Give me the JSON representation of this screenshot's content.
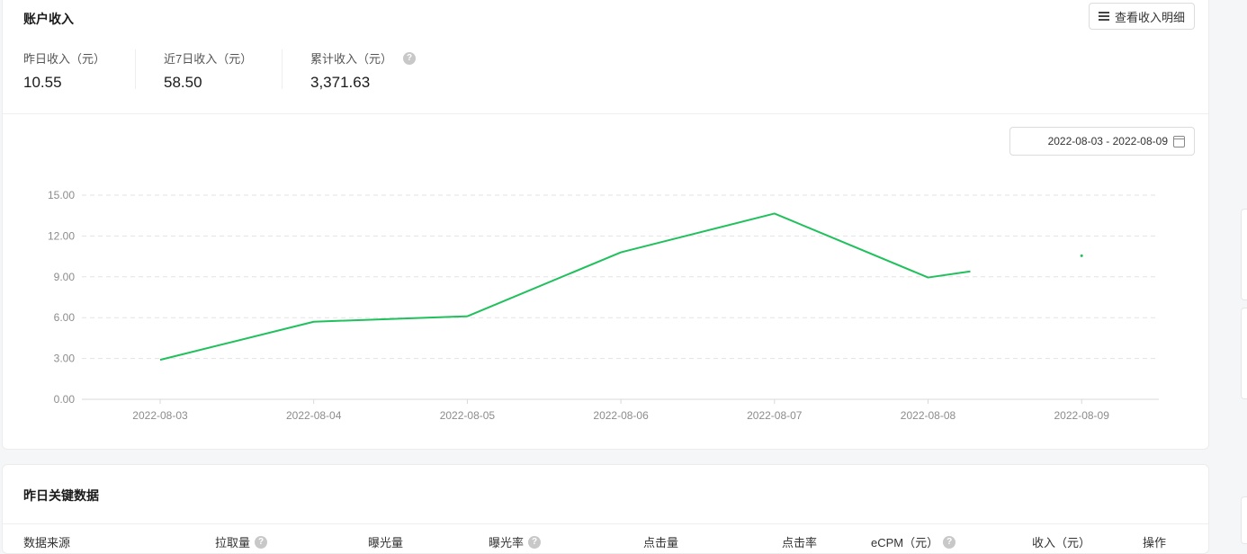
{
  "income": {
    "title": "账户收入",
    "detail_button": "查看收入明细",
    "stats": [
      {
        "label": "昨日收入（元）",
        "value": "10.55"
      },
      {
        "label": "近7日收入（元）",
        "value": "58.50"
      },
      {
        "label": "累计收入（元）",
        "value": "3,371.63",
        "help": "?"
      }
    ],
    "date_range": "2022-08-03 - 2022-08-09"
  },
  "chart_data": {
    "type": "line",
    "categories": [
      "2022-08-03",
      "2022-08-04",
      "2022-08-05",
      "2022-08-06",
      "2022-08-07",
      "2022-08-08",
      "2022-08-09"
    ],
    "y_ticks": [
      "0.00",
      "3.00",
      "6.00",
      "9.00",
      "12.00",
      "15.00"
    ],
    "ylim": [
      0,
      15
    ],
    "grid": true,
    "color": "#20c05c",
    "series": [
      {
        "points": [
          {
            "x": "2022-08-03",
            "y": 2.9
          },
          {
            "x": "2022-08-04",
            "y": 5.7
          },
          {
            "x": "2022-08-05",
            "y": 6.1
          },
          {
            "x": "2022-08-06",
            "y": 10.8
          },
          {
            "x": "2022-08-07",
            "y": 13.65
          },
          {
            "x": "2022-08-08",
            "y": 8.95
          },
          {
            "x": "2022-08-08 (later)",
            "y": 9.4
          }
        ]
      },
      {
        "points": [
          {
            "x": "2022-08-09",
            "y": 10.55
          }
        ]
      }
    ]
  },
  "key_data": {
    "title": "昨日关键数据",
    "columns": [
      {
        "label": "数据来源"
      },
      {
        "label": "拉取量",
        "help": "?"
      },
      {
        "label": "曝光量"
      },
      {
        "label": "曝光率",
        "help": "?"
      },
      {
        "label": "点击量"
      },
      {
        "label": "点击率"
      },
      {
        "label": "eCPM（元）",
        "help": "?"
      },
      {
        "label": "收入（元）"
      },
      {
        "label": "操作"
      }
    ]
  }
}
